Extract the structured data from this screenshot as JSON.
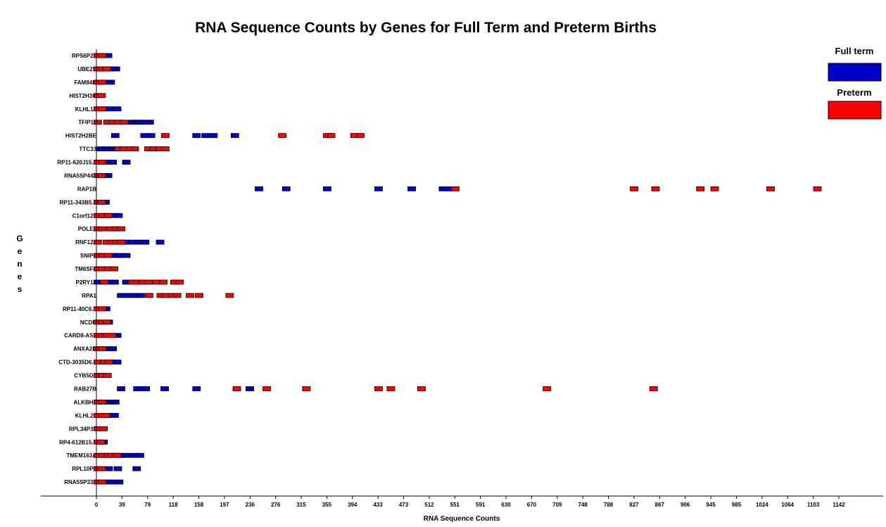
{
  "chart_data": {
    "type": "scatter",
    "title": "RNA Sequence Counts by Genes for Full Term and Preterm Births",
    "xlabel": "RNA Sequence Counts",
    "ylabel": "Genes",
    "xlim": [
      0,
      1142
    ],
    "x_ticks": [
      "0",
      "39",
      "79",
      "118",
      "158",
      "197",
      "236",
      "276",
      "315",
      "355",
      "394",
      "433",
      "473",
      "512",
      "551",
      "591",
      "630",
      "670",
      "709",
      "748",
      "788",
      "827",
      "867",
      "906",
      "945",
      "985",
      "1024",
      "1064",
      "1103",
      "1142"
    ],
    "legend": {
      "position": "top-right",
      "entries": [
        {
          "name": "Full term",
          "color": "#0000cc"
        },
        {
          "name": "Preterm",
          "color": "#ff0000"
        }
      ]
    },
    "colors": {
      "full_term": "#0000cc",
      "preterm": "#ff0000"
    },
    "genes": [
      {
        "name": "RPS6P25",
        "full_term": [
          7,
          18
        ],
        "preterm": [
          2,
          9
        ]
      },
      {
        "name": "UBE2S",
        "full_term": [
          8,
          22,
          30
        ],
        "preterm": [
          2,
          9,
          16
        ]
      },
      {
        "name": "FAM84B",
        "full_term": [
          9,
          22
        ],
        "preterm": [
          2,
          9
        ]
      },
      {
        "name": "HIST2H3C",
        "full_term": [],
        "preterm": [
          2,
          8
        ]
      },
      {
        "name": "KLHL14",
        "full_term": [
          12,
          22,
          32
        ],
        "preterm": [
          2,
          9
        ]
      },
      {
        "name": "TFIP11",
        "full_term": [
          55,
          62,
          72,
          82
        ],
        "preterm": [
          2,
          17,
          25,
          33,
          42
        ]
      },
      {
        "name": "HIST2H2BE",
        "full_term": [
          29,
          74,
          84,
          154,
          168,
          180,
          213
        ],
        "preterm": [
          106,
          286,
          355,
          361,
          397,
          406
        ]
      },
      {
        "name": "TTC33",
        "full_term": [
          7,
          15,
          24
        ],
        "preterm": [
          34,
          42,
          52,
          59,
          80,
          88,
          97,
          106
        ]
      },
      {
        "name": "RP11-620J15.3",
        "full_term": [
          15,
          25,
          46
        ],
        "preterm": [
          2,
          9
        ]
      },
      {
        "name": "RNA5SP442",
        "full_term": [
          7,
          18
        ],
        "preterm": [
          2,
          8
        ]
      },
      {
        "name": "RAP1B",
        "full_term": [
          250,
          292,
          355,
          434,
          485,
          533,
          543
        ],
        "preterm": [
          552,
          827,
          860,
          929,
          951,
          1037,
          1109
        ]
      },
      {
        "name": "RP11-343B5.1",
        "full_term": [
          14
        ],
        "preterm": [
          2,
          8
        ]
      },
      {
        "name": "C1orf123",
        "full_term": [
          13,
          24,
          34
        ],
        "preterm": [
          2,
          9,
          18
        ]
      },
      {
        "name": "POLE2",
        "full_term": [],
        "preterm": [
          2,
          9,
          22,
          30,
          38
        ]
      },
      {
        "name": "RNF123",
        "full_term": [
          38,
          46,
          55,
          65,
          75,
          98
        ],
        "preterm": [
          2,
          16,
          24,
          32,
          38
        ]
      },
      {
        "name": "SNIP1",
        "full_term": [
          26,
          35,
          46
        ],
        "preterm": [
          2,
          9,
          18
        ]
      },
      {
        "name": "TM6SF1",
        "full_term": [],
        "preterm": [
          2,
          9,
          18,
          27
        ]
      },
      {
        "name": "P2RY12",
        "full_term": [
          2,
          21,
          28,
          46
        ],
        "preterm": [
          12,
          55,
          63,
          71,
          80,
          93,
          103,
          120,
          128
        ]
      },
      {
        "name": "RPA1",
        "full_term": [
          38,
          48,
          58,
          68
        ],
        "preterm": [
          81,
          99,
          107,
          118,
          124,
          144,
          158,
          205
        ]
      },
      {
        "name": "RP11-40C6.2",
        "full_term": [
          15
        ],
        "preterm": [
          2,
          9
        ]
      },
      {
        "name": "NCDN",
        "full_term": [
          19
        ],
        "preterm": [
          2,
          9,
          16
        ]
      },
      {
        "name": "CARD8-AS1",
        "full_term": [
          32
        ],
        "preterm": [
          2,
          9,
          16,
          24
        ]
      },
      {
        "name": "ANXA2R",
        "full_term": [
          15,
          25
        ],
        "preterm": [
          2,
          9
        ]
      },
      {
        "name": "CTD-3035D6.1",
        "full_term": [
          22,
          32
        ],
        "preterm": [
          2,
          12,
          19
        ]
      },
      {
        "name": "CYB5D2",
        "full_term": [],
        "preterm": [
          2,
          9,
          17
        ]
      },
      {
        "name": "RAB27B",
        "full_term": [
          38,
          63,
          69,
          76,
          105,
          154,
          236
        ],
        "preterm": [
          216,
          262,
          323,
          434,
          453,
          500,
          693,
          857
        ]
      },
      {
        "name": "ALKBH2",
        "full_term": [
          20,
          29
        ],
        "preterm": [
          2,
          9
        ]
      },
      {
        "name": "KLHL20",
        "full_term": [
          19,
          28
        ],
        "preterm": [
          2,
          9,
          15
        ]
      },
      {
        "name": "RPL34P31",
        "full_term": [],
        "preterm": [
          2,
          11
        ]
      },
      {
        "name": "RP4-612B15.2",
        "full_term": [
          11
        ],
        "preterm": [
          2,
          7
        ]
      },
      {
        "name": "TMEM163A",
        "full_term": [
          36,
          46,
          57,
          67
        ],
        "preterm": [
          2,
          10,
          18,
          24,
          32
        ]
      },
      {
        "name": "RPL10P3",
        "full_term": [
          19,
          33,
          62
        ],
        "preterm": [
          2,
          8
        ]
      },
      {
        "name": "RNA5SP338",
        "full_term": [
          18,
          26,
          35
        ],
        "preterm": [
          2,
          9
        ]
      }
    ]
  }
}
